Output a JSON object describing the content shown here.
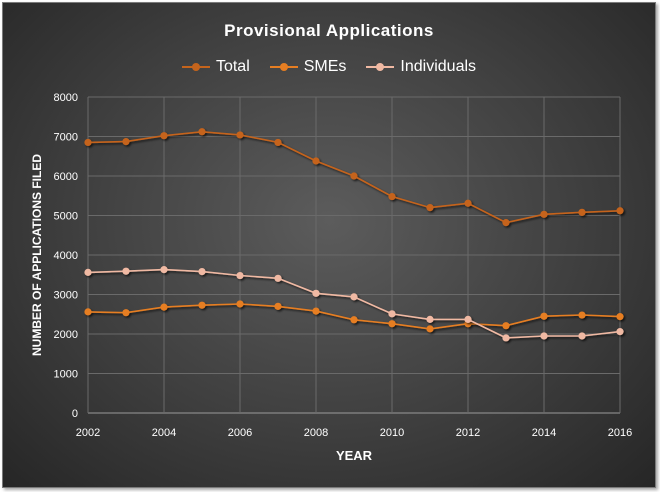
{
  "chart_data": {
    "type": "line",
    "title": "Provisional  Applications",
    "xlabel": "YEAR",
    "ylabel": "NUMBER OF APPLICATIONS FILED",
    "xlim": [
      2002,
      2016
    ],
    "ylim": [
      0,
      8000
    ],
    "x_ticks": [
      2002,
      2004,
      2006,
      2008,
      2010,
      2012,
      2014,
      2016
    ],
    "y_ticks": [
      0,
      1000,
      2000,
      3000,
      4000,
      5000,
      6000,
      7000,
      8000
    ],
    "grid": true,
    "legend_position": "top",
    "x": [
      2002,
      2003,
      2004,
      2005,
      2006,
      2007,
      2008,
      2009,
      2010,
      2011,
      2012,
      2013,
      2014,
      2015,
      2016
    ],
    "series": [
      {
        "name": "Total",
        "color": "#c5641c",
        "values": [
          6850,
          6870,
          7020,
          7120,
          7040,
          6850,
          6380,
          6000,
          5480,
          5200,
          5310,
          4820,
          5030,
          5080,
          5120
        ]
      },
      {
        "name": "SMEs",
        "color": "#e67e22",
        "values": [
          2560,
          2540,
          2680,
          2730,
          2760,
          2700,
          2580,
          2360,
          2260,
          2130,
          2260,
          2210,
          2450,
          2480,
          2440
        ]
      },
      {
        "name": "Individuals",
        "color": "#f0b9a3",
        "values": [
          3560,
          3590,
          3630,
          3580,
          3480,
          3410,
          3030,
          2940,
          2510,
          2370,
          2370,
          1900,
          1950,
          1950,
          2060
        ]
      }
    ]
  }
}
